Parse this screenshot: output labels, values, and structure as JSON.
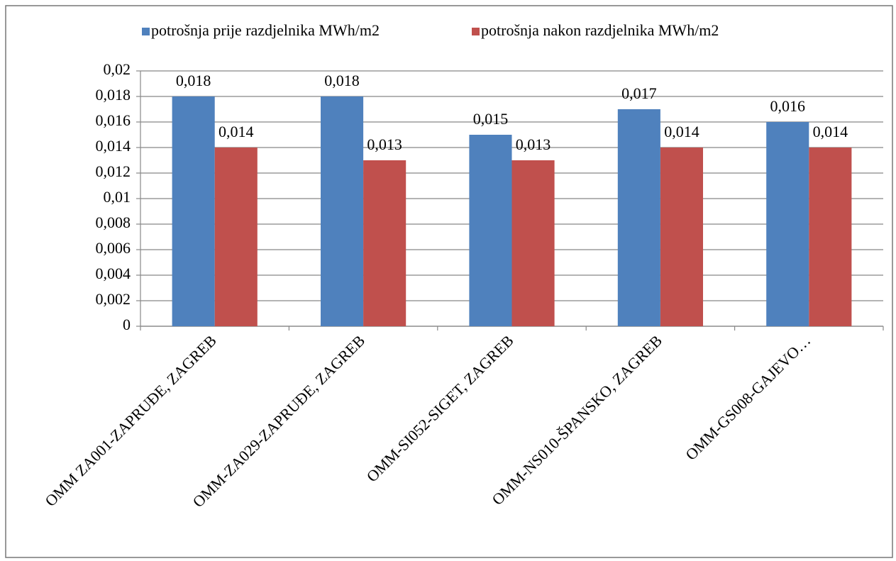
{
  "chart_data": {
    "type": "bar",
    "categories": [
      "OMM ZA001-ZAPRUĐE, ZAGREB",
      "OMM-ZA029-ZAPRUĐE, ZAGREB",
      "OMM-SI052-SIGET, ZAGREB",
      "OMM-NS010-ŠPANSKO, ZAGREB",
      "OMM-GS008-GAJEVO…"
    ],
    "series": [
      {
        "name": "potrošnja prije razdjelnika MWh/m2",
        "color": "#4f81bd",
        "values": [
          0.018,
          0.018,
          0.015,
          0.017,
          0.016
        ],
        "value_labels": [
          "0,018",
          "0,018",
          "0,015",
          "0,017",
          "0,016"
        ]
      },
      {
        "name": "potrošnja nakon razdjelnika MWh/m2",
        "color": "#c0504d",
        "values": [
          0.014,
          0.013,
          0.013,
          0.014,
          0.014
        ],
        "value_labels": [
          "0,014",
          "0,013",
          "0,013",
          "0,014",
          "0,014"
        ]
      }
    ],
    "ylim": [
      0,
      0.02
    ],
    "yticks": [
      0,
      {
        "value": 0.002,
        "label": "0,002"
      },
      {
        "value": 0.004,
        "label": "0,004"
      },
      {
        "value": 0.006,
        "label": "0,006"
      },
      {
        "value": 0.008,
        "label": "0,008"
      },
      {
        "value": 0.01,
        "label": "0,01"
      },
      {
        "value": 0.012,
        "label": "0,012"
      },
      {
        "value": 0.014,
        "label": "0,014"
      },
      {
        "value": 0.016,
        "label": "0,016"
      },
      {
        "value": 0.018,
        "label": "0,018"
      },
      {
        "value": 0.02,
        "label": "0,02"
      }
    ],
    "grid": true,
    "legend": "top"
  }
}
